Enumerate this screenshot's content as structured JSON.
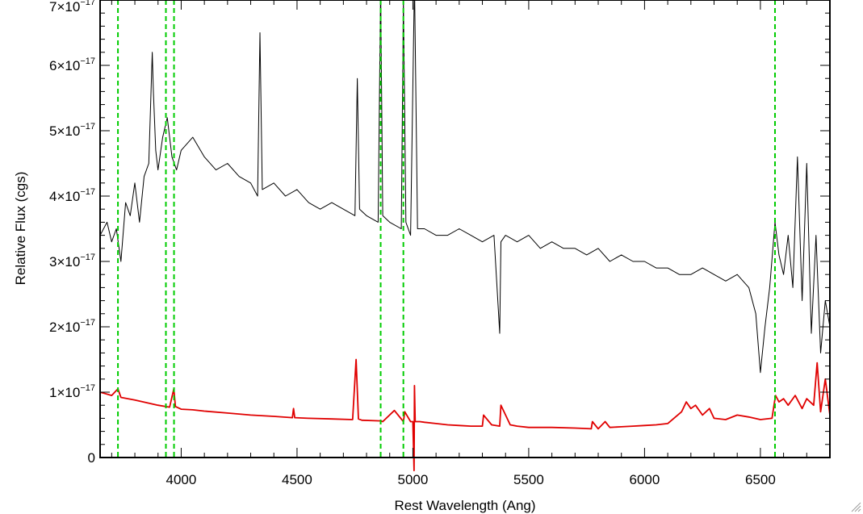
{
  "chart_data": {
    "type": "line",
    "title": "",
    "xlabel": "Rest Wavelength (Ang)",
    "ylabel": "Relative Flux (cgs)",
    "xlim": [
      3650,
      6800
    ],
    "ylim": [
      0,
      7e-17
    ],
    "grid": false,
    "x_ticks": [
      4000,
      4500,
      5000,
      5500,
      6000,
      6500
    ],
    "x_tick_labels": [
      "4000",
      "4500",
      "5000",
      "5500",
      "6000",
      "6500"
    ],
    "y_ticks": [
      0,
      1e-17,
      2e-17,
      3e-17,
      4e-17,
      5e-17,
      6e-17,
      7e-17
    ],
    "y_tick_labels": [
      {
        "mant": "0",
        "exp": ""
      },
      {
        "mant": "1×10",
        "exp": "−17"
      },
      {
        "mant": "2×10",
        "exp": "−17"
      },
      {
        "mant": "3×10",
        "exp": "−17"
      },
      {
        "mant": "4×10",
        "exp": "−17"
      },
      {
        "mant": "5×10",
        "exp": "−17"
      },
      {
        "mant": "6×10",
        "exp": "−17"
      },
      {
        "mant": "7×10",
        "exp": "−17"
      }
    ],
    "series": [
      {
        "color": "#000000",
        "x": [
          3650,
          3680,
          3700,
          3720,
          3740,
          3760,
          3780,
          3800,
          3820,
          3840,
          3860,
          3875,
          3880,
          3890,
          3900,
          3920,
          3940,
          3960,
          3980,
          4000,
          4050,
          4100,
          4150,
          4200,
          4250,
          4300,
          4330,
          4340,
          4350,
          4400,
          4450,
          4500,
          4550,
          4600,
          4650,
          4700,
          4750,
          4760,
          4770,
          4800,
          4850,
          4861,
          4870,
          4900,
          4950,
          4959,
          4970,
          4990,
          5007,
          5020,
          5050,
          5100,
          5150,
          5200,
          5250,
          5300,
          5350,
          5375,
          5380,
          5400,
          5450,
          5500,
          5550,
          5600,
          5650,
          5700,
          5750,
          5800,
          5850,
          5900,
          5950,
          6000,
          6050,
          6100,
          6150,
          6200,
          6250,
          6300,
          6350,
          6400,
          6450,
          6480,
          6500,
          6520,
          6540,
          6563,
          6580,
          6600,
          6620,
          6640,
          6660,
          6680,
          6700,
          6720,
          6740,
          6760,
          6780,
          6800
        ],
        "y": [
          3.4e-17,
          3.6e-17,
          3.3e-17,
          3.5e-17,
          3e-17,
          3.9e-17,
          3.7e-17,
          4.2e-17,
          3.6e-17,
          4.3e-17,
          4.5e-17,
          6.2e-17,
          5.6e-17,
          4.7e-17,
          4.4e-17,
          4.9e-17,
          5.2e-17,
          4.6e-17,
          4.4e-17,
          4.7e-17,
          4.9e-17,
          4.6e-17,
          4.4e-17,
          4.5e-17,
          4.3e-17,
          4.2e-17,
          4e-17,
          6.5e-17,
          4.1e-17,
          4.2e-17,
          4e-17,
          4.1e-17,
          3.9e-17,
          3.8e-17,
          3.9e-17,
          3.8e-17,
          3.7e-17,
          5.8e-17,
          3.8e-17,
          3.7e-17,
          3.6e-17,
          7.2e-17,
          3.7e-17,
          3.6e-17,
          3.5e-17,
          7e-17,
          3.6e-17,
          3.4e-17,
          7.3e-17,
          3.5e-17,
          3.5e-17,
          3.4e-17,
          3.4e-17,
          3.5e-17,
          3.4e-17,
          3.3e-17,
          3.4e-17,
          1.9e-17,
          3.3e-17,
          3.4e-17,
          3.3e-17,
          3.4e-17,
          3.2e-17,
          3.3e-17,
          3.2e-17,
          3.2e-17,
          3.1e-17,
          3.2e-17,
          3e-17,
          3.1e-17,
          3e-17,
          3e-17,
          2.9e-17,
          2.9e-17,
          2.8e-17,
          2.8e-17,
          2.9e-17,
          2.8e-17,
          2.7e-17,
          2.8e-17,
          2.6e-17,
          2.2e-17,
          1.3e-17,
          2e-17,
          2.6e-17,
          3.6e-17,
          3.1e-17,
          2.8e-17,
          3.4e-17,
          2.6e-17,
          4.6e-17,
          2.4e-17,
          4.5e-17,
          1.9e-17,
          3.4e-17,
          1.6e-17,
          2.4e-17,
          2e-17
        ]
      },
      {
        "color": "#e00000",
        "x": [
          3650,
          3700,
          3727,
          3740,
          3800,
          3850,
          3900,
          3950,
          3968,
          3975,
          4000,
          4050,
          4100,
          4200,
          4300,
          4400,
          4480,
          4485,
          4490,
          4550,
          4650,
          4740,
          4755,
          4765,
          4780,
          4861,
          4870,
          4920,
          4959,
          4965,
          4990,
          5000,
          5005,
          5007,
          5010,
          5030,
          5050,
          5100,
          5150,
          5200,
          5250,
          5300,
          5305,
          5340,
          5375,
          5380,
          5420,
          5450,
          5500,
          5600,
          5700,
          5770,
          5775,
          5800,
          5830,
          5850,
          5900,
          5950,
          6000,
          6050,
          6100,
          6160,
          6180,
          6200,
          6220,
          6250,
          6280,
          6300,
          6350,
          6400,
          6450,
          6500,
          6550,
          6565,
          6580,
          6600,
          6620,
          6650,
          6680,
          6700,
          6730,
          6745,
          6760,
          6780,
          6800
        ],
        "y": [
          1e-17,
          9.5e-18,
          1.05e-17,
          9.2e-18,
          8.8e-18,
          8.4e-18,
          8e-18,
          7.7e-18,
          1.05e-17,
          7.8e-18,
          7.4e-18,
          7.3e-18,
          7.1e-18,
          6.8e-18,
          6.5e-18,
          6.3e-18,
          6.1e-18,
          7.5e-18,
          6.1e-18,
          6e-18,
          5.9e-18,
          5.8e-18,
          1.5e-17,
          5.9e-18,
          5.7e-18,
          5.6e-18,
          5.5e-18,
          7.2e-18,
          5.5e-18,
          7e-18,
          5.5e-18,
          5.5e-18,
          -2e-18,
          1.1e-17,
          5.5e-18,
          5.5e-18,
          5.4e-18,
          5.2e-18,
          5e-18,
          4.9e-18,
          4.8e-18,
          4.8e-18,
          6.5e-18,
          5e-18,
          4.8e-18,
          8e-18,
          5e-18,
          4.8e-18,
          4.6e-18,
          4.6e-18,
          4.5e-18,
          4.4e-18,
          5.5e-18,
          4.4e-18,
          5.5e-18,
          4.6e-18,
          4.7e-18,
          4.8e-18,
          4.9e-18,
          5e-18,
          5.2e-18,
          7e-18,
          8.5e-18,
          7.5e-18,
          8e-18,
          6.5e-18,
          7.5e-18,
          6e-18,
          5.8e-18,
          6.5e-18,
          6.2e-18,
          5.8e-18,
          6e-18,
          9.5e-18,
          8.5e-18,
          9e-18,
          8e-18,
          9.5e-18,
          7.5e-18,
          9e-18,
          8e-18,
          1.45e-17,
          7e-18,
          1.2e-17,
          6.5e-18
        ]
      }
    ],
    "vlines": {
      "color": "#00cc00",
      "style": "dashed",
      "x": [
        3727,
        3934,
        3969,
        4861,
        4959,
        6563
      ]
    }
  }
}
